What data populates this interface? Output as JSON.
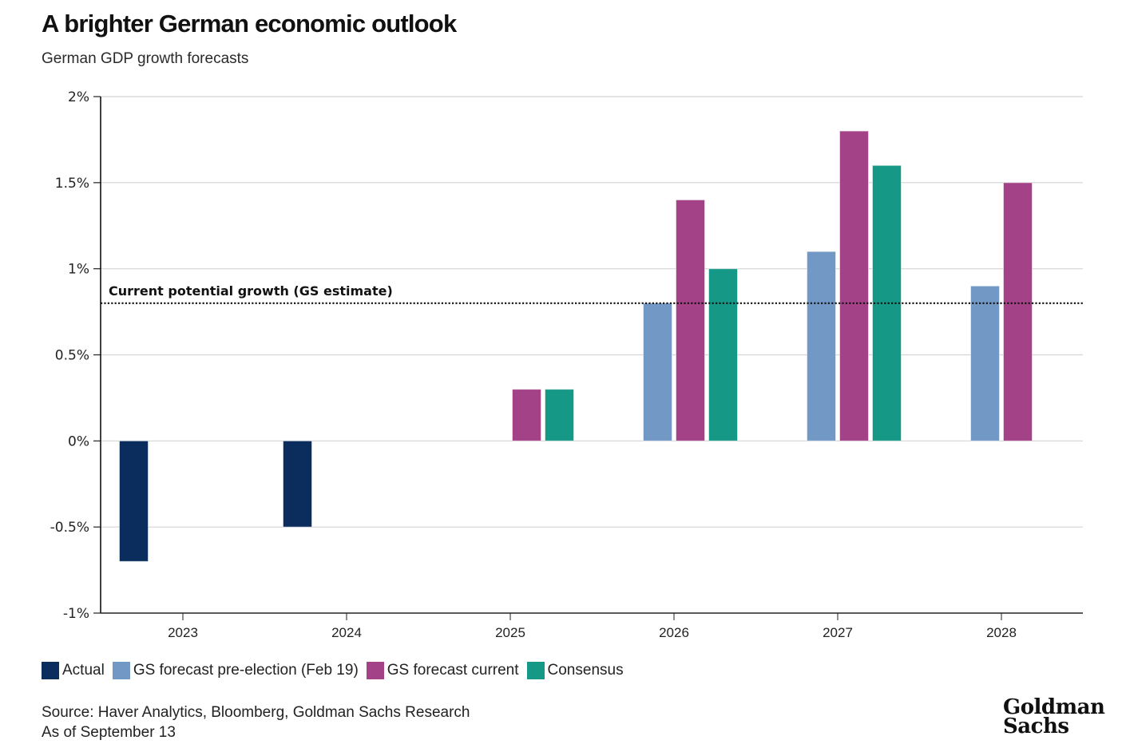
{
  "title": "A brighter German economic outlook",
  "subtitle": "German GDP growth forecasts",
  "legend": [
    {
      "label": "Actual",
      "color": "#0b2d5e"
    },
    {
      "label": "GS forecast pre-election (Feb 19)",
      "color": "#7298c5"
    },
    {
      "label": "GS forecast current",
      "color": "#a44287"
    },
    {
      "label": "Consensus",
      "color": "#169886"
    }
  ],
  "source": "Source: Haver Analytics, Bloomberg, Goldman Sachs Research",
  "as_of": "As of September 13",
  "logo": {
    "line1": "Goldman",
    "line2": "Sachs"
  },
  "chart_data": {
    "type": "bar",
    "title": "A brighter German economic outlook",
    "subtitle": "German GDP growth forecasts",
    "xlabel": "",
    "ylabel": "",
    "categories": [
      "2023",
      "2024",
      "2025",
      "2026",
      "2027",
      "2028"
    ],
    "series": [
      {
        "name": "Actual",
        "color": "#0b2d5e",
        "values": [
          -0.7,
          -0.5,
          null,
          null,
          null,
          null
        ]
      },
      {
        "name": "GS forecast pre-election (Feb 19)",
        "color": "#7298c5",
        "values": [
          null,
          null,
          null,
          0.8,
          1.1,
          0.9
        ]
      },
      {
        "name": "GS forecast current",
        "color": "#a44287",
        "values": [
          null,
          null,
          0.3,
          1.4,
          1.8,
          1.5
        ]
      },
      {
        "name": "Consensus",
        "color": "#169886",
        "values": [
          null,
          null,
          0.3,
          1.0,
          1.6,
          null
        ]
      }
    ],
    "ylim": [
      -1,
      2
    ],
    "yticks": [
      2,
      1.5,
      1,
      0.5,
      0,
      -0.5,
      -1
    ],
    "ytick_labels": [
      "2%",
      "1.5%",
      "1%",
      "0.5%",
      "0%",
      "-0.5%",
      "-1%"
    ],
    "grid": true,
    "legend_position": "bottom-left",
    "reference_line": {
      "value": 0.8,
      "label": "Current potential growth (GS estimate)",
      "style": "dotted"
    }
  }
}
